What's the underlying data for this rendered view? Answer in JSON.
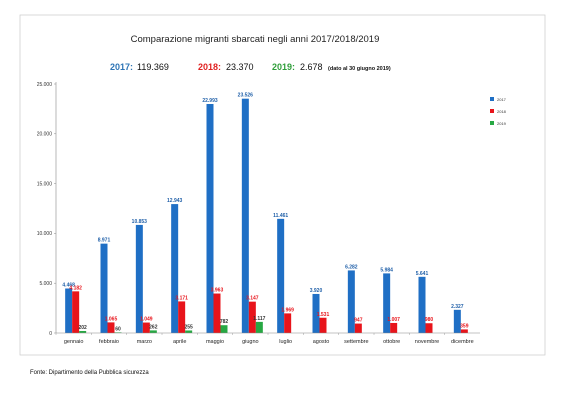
{
  "chart_data": {
    "type": "bar",
    "title": "Comparazione migranti sbarcati negli anni 2017/2018/2019",
    "totals": [
      {
        "label": "2017:",
        "value": "119.369",
        "color": "#2e75b6"
      },
      {
        "label": "2018:",
        "value": "23.370",
        "color": "#e02020"
      },
      {
        "label": "2019:",
        "value": "2.678",
        "color": "#2f9e3a",
        "note": "(dato al 30 giugno 2019)"
      }
    ],
    "categories": [
      "gennaio",
      "febbraio",
      "marzo",
      "aprile",
      "maggio",
      "giugno",
      "luglio",
      "agosto",
      "settembre",
      "ottobre",
      "novembre",
      "dicembre"
    ],
    "series": [
      {
        "name": "2017",
        "color": "#1f6fc5",
        "label_color": "#1f5fa8",
        "values": [
          4468,
          8971,
          10853,
          12943,
          22993,
          23526,
          11461,
          3920,
          6282,
          5984,
          5641,
          2327
        ],
        "labels": [
          "4.468",
          "8.971",
          "10.853",
          "12.943",
          "22.993",
          "23.526",
          "11.461",
          "3.920",
          "6.282",
          "5.984",
          "5.641",
          "2.327"
        ]
      },
      {
        "name": "2018",
        "color": "#e8141b",
        "label_color": "#e8141b",
        "values": [
          4182,
          1065,
          1049,
          3171,
          3963,
          3147,
          1969,
          1531,
          947,
          1007,
          980,
          359
        ],
        "labels": [
          "4.182",
          "1.065",
          "1.049",
          "3.171",
          "3.963",
          "3.147",
          "1.969",
          "1.531",
          "947",
          "1.007",
          "980",
          "359"
        ]
      },
      {
        "name": "2019",
        "color": "#27a843",
        "label_color": "#333333",
        "values": [
          202,
          60,
          262,
          255,
          782,
          1117,
          null,
          null,
          null,
          null,
          null,
          null
        ],
        "labels": [
          "202",
          "60",
          "262",
          "255",
          "782",
          "1.117",
          "",
          "",
          "",
          "",
          "",
          ""
        ]
      }
    ],
    "y_ticks": [
      0,
      5000,
      10000,
      15000,
      20000,
      25000
    ],
    "y_tick_labels": [
      "0",
      "5.000",
      "10.000",
      "15.000",
      "20.000",
      "25.000"
    ],
    "ylim": [
      0,
      25000
    ],
    "grid": false,
    "legend_position": "right",
    "source": "Fonte: Dipartimento della Pubblica sicurezza"
  }
}
